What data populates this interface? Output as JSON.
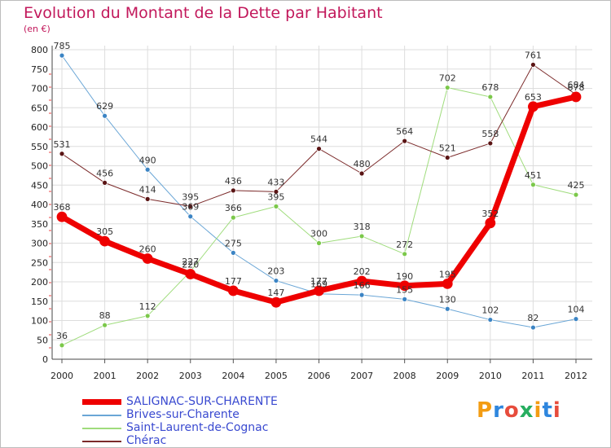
{
  "title": "Evolution du Montant de la Dette par Habitant",
  "unit": "(en €)",
  "logo": {
    "text": "Proxiti",
    "colors": [
      "#f39c12",
      "#2e86de",
      "#e74c3c",
      "#27ae60",
      "#f39c12",
      "#2e86de",
      "#e74c3c"
    ]
  },
  "chart_data": {
    "type": "line",
    "x": [
      "2000",
      "2001",
      "2002",
      "2003",
      "2004",
      "2005",
      "2006",
      "2007",
      "2008",
      "2009",
      "2010",
      "2011",
      "2012"
    ],
    "ylim": [
      0,
      800
    ],
    "yticks": [
      "0",
      "50",
      "100",
      "150",
      "200",
      "250",
      "300",
      "350",
      "400",
      "450",
      "500",
      "550",
      "600",
      "650",
      "700",
      "750",
      "800"
    ],
    "grid": true,
    "legend": "bottom-left",
    "series": [
      {
        "name": "Brives-sur-Charente",
        "color": "#6aa6d6",
        "dot": "#3b84c4",
        "width": 1,
        "values": [
          785,
          629,
          490,
          369,
          275,
          203,
          169,
          166,
          155,
          130,
          102,
          82,
          104
        ],
        "labels": [
          "785",
          "629",
          "490",
          "369",
          "275",
          "203",
          "169",
          "166",
          "155",
          "130",
          "102",
          "82",
          "104"
        ]
      },
      {
        "name": "Saint-Laurent-de-Cognac",
        "color": "#9fdc7c",
        "dot": "#7bc84a",
        "width": 1,
        "values": [
          36,
          88,
          112,
          227,
          366,
          395,
          300,
          318,
          272,
          702,
          678,
          451,
          425
        ],
        "labels": [
          "36",
          "88",
          "112",
          "227",
          "366",
          "395",
          "300",
          "318",
          "272",
          "702",
          "678",
          "451",
          "425"
        ]
      },
      {
        "name": "Chérac",
        "color": "#7b2a2a",
        "dot": "#5a1414",
        "width": 1,
        "values": [
          531,
          456,
          414,
          395,
          436,
          433,
          544,
          480,
          564,
          521,
          558,
          761,
          684
        ],
        "labels": [
          "531",
          "456",
          "414",
          "395",
          "436",
          "433",
          "544",
          "480",
          "564",
          "521",
          "558",
          "761",
          "684"
        ]
      },
      {
        "name": "SALIGNAC-SUR-CHARENTE",
        "color": "#ee0000",
        "dot": "#ee0000",
        "width": 7,
        "values": [
          368,
          305,
          260,
          220,
          177,
          147,
          177,
          202,
          190,
          195,
          352,
          653,
          678
        ],
        "labels": [
          "368",
          "305",
          "260",
          "220",
          "177",
          "147",
          "177",
          "202",
          "190",
          "195",
          "352",
          "653",
          "678"
        ]
      }
    ],
    "legend_order": [
      "SALIGNAC-SUR-CHARENTE",
      "Brives-sur-Charente",
      "Saint-Laurent-de-Cognac",
      "Chérac"
    ]
  }
}
